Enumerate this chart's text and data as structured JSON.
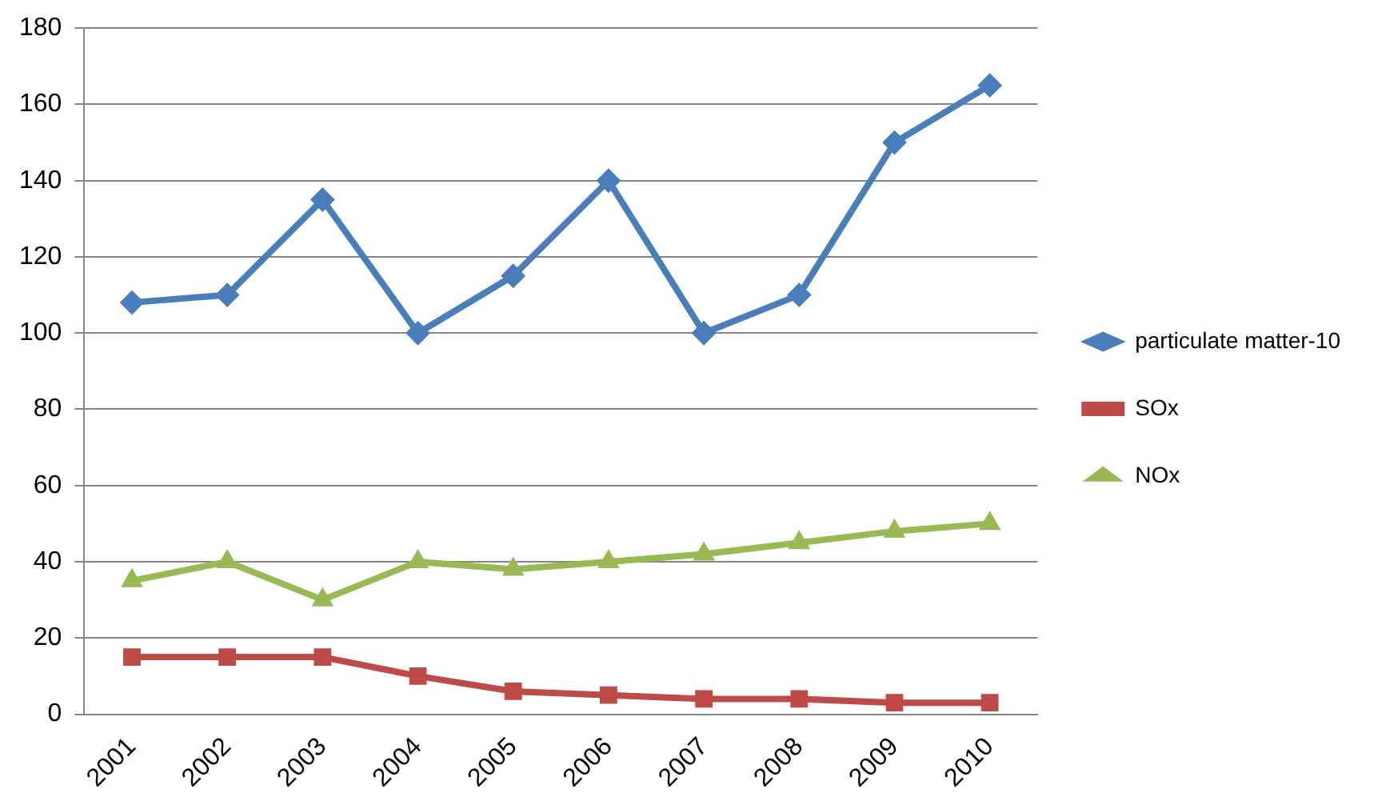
{
  "chart_data": {
    "type": "line",
    "categories": [
      "2001",
      "2002",
      "2003",
      "2004",
      "2005",
      "2006",
      "2007",
      "2008",
      "2009",
      "2010"
    ],
    "series": [
      {
        "name": "particulate matter-10",
        "color": "#4a7ebb",
        "marker": "diamond",
        "values": [
          108,
          110,
          135,
          100,
          115,
          140,
          100,
          110,
          150,
          165
        ]
      },
      {
        "name": "SOx",
        "color": "#be4b48",
        "marker": "square",
        "values": [
          15,
          15,
          15,
          10,
          6,
          5,
          4,
          4,
          3,
          3
        ]
      },
      {
        "name": "NOx",
        "color": "#98b954",
        "marker": "triangle",
        "values": [
          35,
          40,
          30,
          40,
          38,
          40,
          42,
          45,
          48,
          50
        ]
      }
    ],
    "ylim": [
      0,
      180
    ],
    "yticks": [
      0,
      20,
      40,
      60,
      80,
      100,
      120,
      140,
      160,
      180
    ],
    "grid": "y",
    "legend": "right"
  }
}
